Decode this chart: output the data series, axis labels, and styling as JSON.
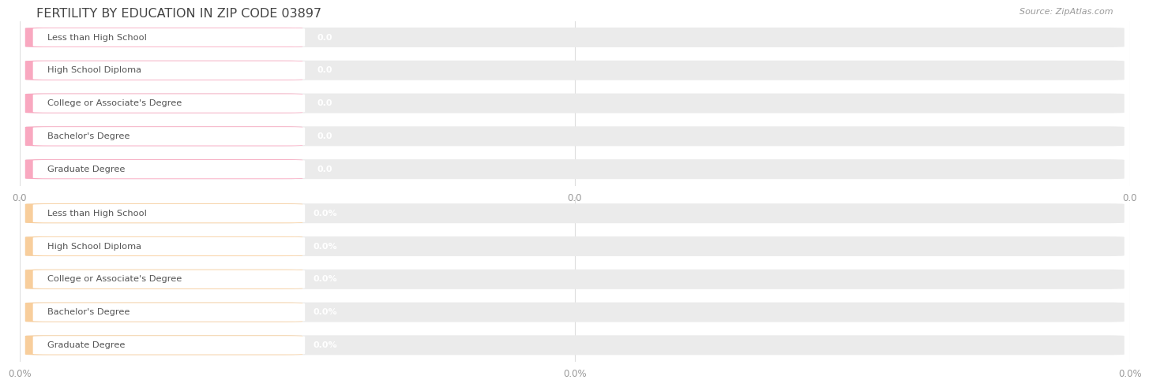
{
  "title": "FERTILITY BY EDUCATION IN ZIP CODE 03897",
  "source": "Source: ZipAtlas.com",
  "categories": [
    "Less than High School",
    "High School Diploma",
    "College or Associate's Degree",
    "Bachelor's Degree",
    "Graduate Degree"
  ],
  "values_top": [
    0.0,
    0.0,
    0.0,
    0.0,
    0.0
  ],
  "values_bottom": [
    0.0,
    0.0,
    0.0,
    0.0,
    0.0
  ],
  "bar_color_top": "#F9A8C0",
  "bar_bg_color": "#EBEBEB",
  "bar_color_bottom": "#F8CE9C",
  "white_label_bg": "#FFFFFF",
  "label_color": "#555555",
  "title_color": "#444444",
  "axis_tick_color": "#999999",
  "top_xlabel_vals": [
    "0.0",
    "0.0",
    "0.0"
  ],
  "bottom_xlabel_vals": [
    "0.0%",
    "0.0%",
    "0.0%"
  ],
  "background_color": "#FFFFFF",
  "grid_color": "#DDDDDD",
  "value_label_color_top": "#F9A8C0",
  "value_label_color_bottom": "#F8CE9C"
}
